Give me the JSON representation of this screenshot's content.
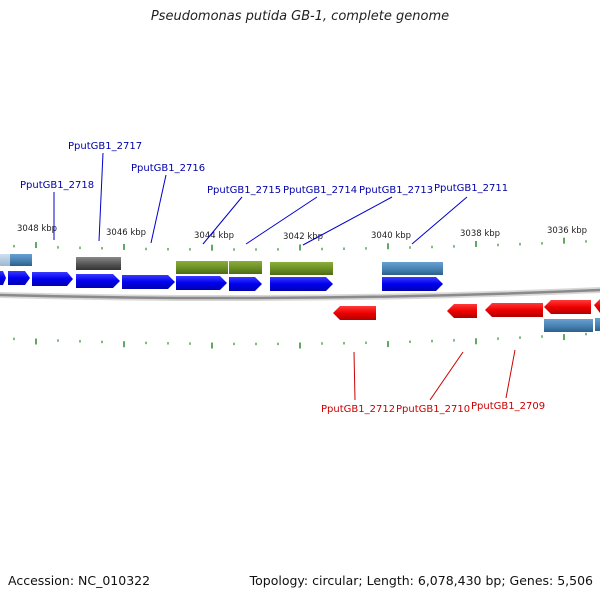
{
  "title": "Pseudomonas putida GB-1, complete genome",
  "footer": {
    "accession": "Accession: NC_010322",
    "summary": "Topology: circular; Length: 6,078,430 bp; Genes: 5,506"
  },
  "colors": {
    "forward_gene": "#0000ee",
    "reverse_gene": "#ee0000",
    "olive_feature": "#6b8e23",
    "steel_feature": "#4682b4",
    "gray_feature": "#555555",
    "tick": "#2e8b2e",
    "backbone": "#888888",
    "forward_label": "#0000aa",
    "reverse_label": "#cc0000"
  },
  "axis": {
    "ticks": [
      "3048 kbp",
      "3046 kbp",
      "3044 kbp",
      "3042 kbp",
      "3040 kbp",
      "3038 kbp",
      "3036 kbp"
    ]
  },
  "forward_labels": [
    "PputGB1_2718",
    "PputGB1_2717",
    "PputGB1_2716",
    "PputGB1_2715",
    "PputGB1_2714",
    "PputGB1_2713",
    "PputGB1_2711"
  ],
  "reverse_labels": [
    "PputGB1_2712",
    "PputGB1_2710",
    "PputGB1_2709"
  ]
}
